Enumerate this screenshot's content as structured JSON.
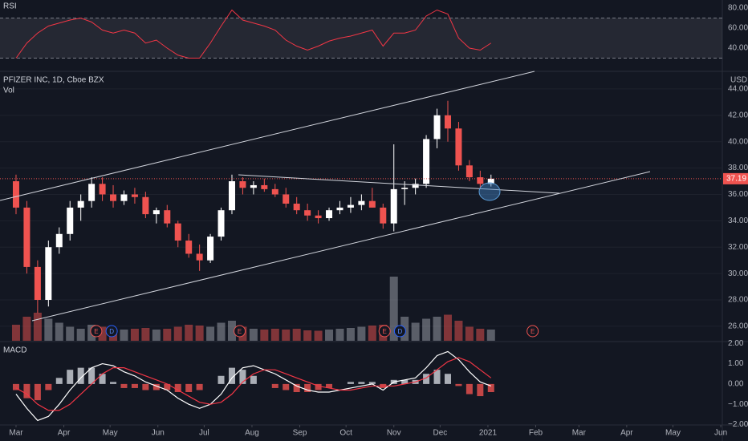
{
  "chart_data": [
    {
      "type": "candlestick",
      "title": "PFIZER INC, 1D, Cboe BZX",
      "subtitle": "Vol",
      "unit": "USD",
      "x": [
        0,
        7,
        14,
        21,
        28,
        35,
        42,
        49,
        56,
        63,
        70,
        77,
        84,
        91,
        98,
        105,
        112,
        119,
        126,
        133,
        140,
        147,
        154,
        161,
        168,
        175,
        182,
        189,
        196,
        203,
        210,
        217,
        224,
        231,
        238,
        245,
        252,
        259,
        266,
        273,
        280,
        287,
        294,
        301,
        308
      ],
      "open": [
        37.0,
        35.0,
        30.5,
        28.0,
        32.0,
        33.0,
        35.0,
        35.5,
        36.8,
        36.0,
        35.5,
        36.0,
        35.8,
        34.5,
        34.8,
        33.8,
        32.5,
        31.5,
        31.0,
        32.8,
        34.8,
        37.0,
        36.5,
        36.7,
        36.4,
        36.0,
        35.3,
        34.8,
        34.4,
        34.2,
        34.8,
        35.0,
        35.2,
        35.5,
        35.0,
        33.8,
        36.4,
        36.5,
        36.8,
        40.2,
        42.0,
        41.0,
        38.2,
        37.3,
        36.8
      ],
      "high": [
        37.5,
        35.5,
        31.0,
        32.5,
        33.5,
        35.5,
        36.0,
        37.3,
        37.3,
        36.7,
        36.3,
        36.5,
        36.2,
        35.0,
        35.2,
        34.0,
        33.0,
        32.2,
        33.0,
        35.0,
        37.5,
        37.3,
        37.0,
        37.2,
        36.8,
        36.5,
        35.8,
        35.3,
        34.8,
        35.0,
        35.5,
        35.8,
        36.0,
        36.5,
        35.3,
        39.8,
        37.0,
        37.2,
        40.5,
        42.5,
        43.1,
        41.5,
        38.6,
        37.8,
        37.5
      ],
      "low": [
        34.5,
        30.0,
        27.0,
        27.5,
        31.5,
        32.5,
        34.0,
        35.0,
        35.5,
        35.0,
        35.2,
        35.3,
        34.2,
        33.8,
        33.5,
        32.0,
        31.2,
        30.2,
        30.8,
        32.5,
        34.5,
        36.0,
        36.0,
        36.2,
        35.8,
        35.0,
        34.5,
        34.0,
        33.8,
        34.0,
        34.5,
        34.6,
        34.8,
        35.0,
        33.4,
        33.2,
        35.2,
        36.0,
        36.5,
        39.5,
        40.0,
        37.8,
        37.0,
        36.4,
        36.6
      ],
      "close": [
        35.0,
        30.5,
        28.0,
        32.0,
        33.0,
        35.0,
        35.5,
        36.8,
        36.0,
        35.5,
        36.0,
        35.8,
        34.5,
        34.8,
        33.8,
        32.5,
        31.5,
        31.0,
        32.8,
        34.8,
        37.0,
        36.5,
        36.7,
        36.4,
        36.0,
        35.3,
        34.8,
        34.4,
        34.2,
        34.8,
        35.0,
        35.2,
        35.5,
        35.0,
        33.8,
        36.4,
        36.5,
        36.8,
        40.2,
        42.0,
        41.0,
        38.2,
        37.3,
        36.8,
        37.19
      ],
      "volume": [
        40,
        60,
        70,
        55,
        45,
        35,
        30,
        40,
        35,
        30,
        28,
        30,
        32,
        28,
        30,
        35,
        40,
        38,
        35,
        45,
        50,
        35,
        30,
        28,
        30,
        28,
        30,
        26,
        25,
        28,
        30,
        32,
        35,
        38,
        40,
        160,
        60,
        45,
        55,
        60,
        65,
        50,
        35,
        30,
        28
      ],
      "up_color": "#ffffff",
      "down_color": "#ef5350",
      "xlim": [
        -10.4,
        458
      ],
      "ylim": [
        24.9,
        45.15
      ],
      "xticks": [
        {
          "value": 0,
          "label": "Mar"
        },
        {
          "value": 31,
          "label": "Apr"
        },
        {
          "value": 61,
          "label": "May"
        },
        {
          "value": 92,
          "label": "Jun"
        },
        {
          "value": 122,
          "label": "Jul"
        },
        {
          "value": 153,
          "label": "Aug"
        },
        {
          "value": 184,
          "label": "Sep"
        },
        {
          "value": 214,
          "label": "Oct"
        },
        {
          "value": 245,
          "label": "Nov"
        },
        {
          "value": 275,
          "label": "Dec"
        },
        {
          "value": 306,
          "label": "2021"
        },
        {
          "value": 337,
          "label": "Feb"
        },
        {
          "value": 365,
          "label": "Mar"
        },
        {
          "value": 396,
          "label": "Apr"
        },
        {
          "value": 426,
          "label": "May"
        },
        {
          "value": 457,
          "label": "Jun"
        }
      ],
      "yticks": [
        {
          "value": 26,
          "label": "26.00"
        },
        {
          "value": 28,
          "label": "28.00"
        },
        {
          "value": 30,
          "label": "30.00"
        },
        {
          "value": 32,
          "label": "32.00"
        },
        {
          "value": 34,
          "label": "34.00"
        },
        {
          "value": 36,
          "label": "36.00"
        },
        {
          "value": 38,
          "label": "38.00"
        },
        {
          "value": 40,
          "label": "40.00"
        },
        {
          "value": 42,
          "label": "42.00"
        },
        {
          "value": 44,
          "label": "44.00"
        }
      ],
      "events": [
        {
          "x": 52,
          "label": "E"
        },
        {
          "x": 62,
          "label": "D"
        },
        {
          "x": 145,
          "label": "E"
        },
        {
          "x": 239,
          "label": "E"
        },
        {
          "x": 249,
          "label": "D"
        },
        {
          "x": 335,
          "label": "E"
        }
      ],
      "grid": true
    },
    {
      "type": "line",
      "title": "RSI",
      "color": "#f23645",
      "values": [
        30,
        45,
        55,
        62,
        65,
        68,
        70,
        66,
        58,
        55,
        58,
        55,
        45,
        48,
        40,
        33,
        30,
        30,
        45,
        62,
        78,
        68,
        65,
        62,
        58,
        48,
        42,
        38,
        42,
        47,
        50,
        52,
        55,
        58,
        42,
        55,
        55,
        58,
        72,
        78,
        74,
        50,
        40,
        38,
        45
      ],
      "levels": [
        30,
        70
      ],
      "ylim": [
        17.6,
        88
      ],
      "yticks": [
        {
          "value": 40,
          "label": "40.00"
        },
        {
          "value": 60,
          "label": "60.00"
        },
        {
          "value": 80,
          "label": "80.00"
        }
      ]
    },
    {
      "type": "macd",
      "title": "MACD",
      "macd": [
        -0.5,
        -1.2,
        -1.8,
        -1.6,
        -1.0,
        -0.3,
        0.3,
        0.8,
        1.0,
        0.9,
        0.6,
        0.4,
        0.1,
        -0.1,
        -0.3,
        -0.7,
        -1.0,
        -1.2,
        -1.0,
        -0.5,
        0.3,
        0.8,
        0.9,
        0.7,
        0.5,
        0.2,
        -0.1,
        -0.3,
        -0.4,
        -0.4,
        -0.3,
        -0.2,
        -0.1,
        0.0,
        -0.3,
        0.1,
        0.2,
        0.3,
        0.8,
        1.4,
        1.6,
        1.2,
        0.6,
        0.1,
        -0.1
      ],
      "signal": [
        -0.2,
        -0.5,
        -1.0,
        -1.3,
        -1.3,
        -1.0,
        -0.5,
        0.0,
        0.5,
        0.8,
        0.8,
        0.6,
        0.4,
        0.2,
        0.0,
        -0.3,
        -0.6,
        -0.9,
        -1.0,
        -0.9,
        -0.5,
        0.1,
        0.5,
        0.7,
        0.7,
        0.5,
        0.3,
        0.1,
        -0.1,
        -0.2,
        -0.3,
        -0.3,
        -0.2,
        -0.1,
        -0.1,
        -0.1,
        0.0,
        0.1,
        0.3,
        0.7,
        1.1,
        1.3,
        1.1,
        0.7,
        0.3
      ],
      "histogram": [
        -0.3,
        -0.7,
        -0.8,
        -0.3,
        0.3,
        0.7,
        0.8,
        0.8,
        0.5,
        0.1,
        -0.2,
        -0.2,
        -0.3,
        -0.3,
        -0.3,
        -0.4,
        -0.4,
        -0.3,
        0.0,
        0.4,
        0.8,
        0.7,
        0.4,
        0.0,
        -0.2,
        -0.3,
        -0.4,
        -0.4,
        -0.3,
        -0.2,
        0.0,
        0.1,
        0.1,
        0.1,
        -0.2,
        0.2,
        0.2,
        0.2,
        0.5,
        0.7,
        0.5,
        -0.1,
        -0.5,
        -0.6,
        -0.4
      ],
      "macd_color": "#ffffff",
      "signal_color": "#f23645",
      "ylim": [
        -2.02,
        2.09
      ],
      "yticks": [
        {
          "value": -2,
          "label": "−2.00"
        },
        {
          "value": -1,
          "label": "−1.00"
        },
        {
          "value": 0,
          "label": "0.00"
        },
        {
          "value": 1,
          "label": "1.00"
        },
        {
          "value": 2,
          "label": "2.00"
        }
      ]
    }
  ]
}
